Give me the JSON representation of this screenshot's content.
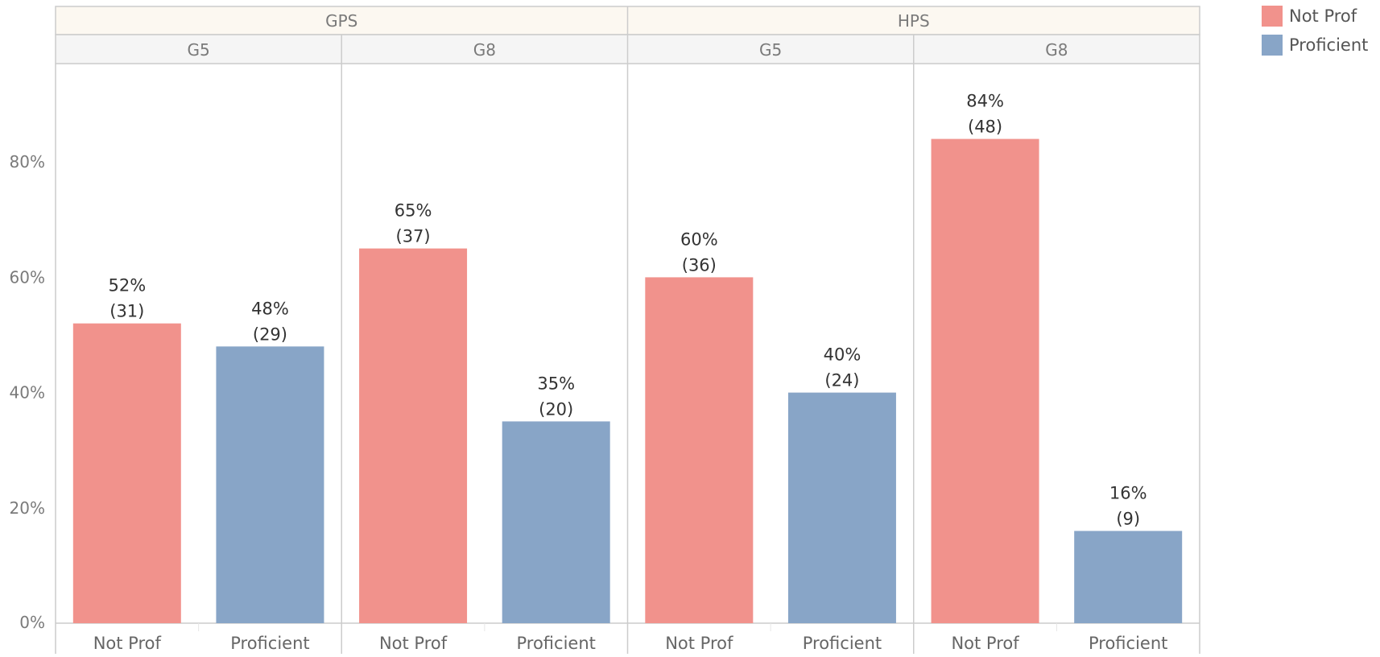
{
  "chart_data": {
    "type": "bar",
    "groups": [
      "GPS",
      "HPS"
    ],
    "subgroups": [
      "G5",
      "G8"
    ],
    "categories": [
      "Not Prof",
      "Proficient"
    ],
    "ylim": [
      0,
      0.98
    ],
    "yticks": [
      0,
      0.2,
      0.4,
      0.6,
      0.8
    ],
    "ytick_labels": [
      "0%",
      "20%",
      "40%",
      "60%",
      "80%"
    ],
    "grid": false,
    "legend_position": "top-right",
    "panels": [
      {
        "group": "GPS",
        "subgroup": "G5",
        "bars": [
          {
            "category": "Not Prof",
            "value": 0.52,
            "pct_label": "52%",
            "count_label": "(31)"
          },
          {
            "category": "Proficient",
            "value": 0.48,
            "pct_label": "48%",
            "count_label": "(29)"
          }
        ]
      },
      {
        "group": "GPS",
        "subgroup": "G8",
        "bars": [
          {
            "category": "Not Prof",
            "value": 0.65,
            "pct_label": "65%",
            "count_label": "(37)"
          },
          {
            "category": "Proficient",
            "value": 0.35,
            "pct_label": "35%",
            "count_label": "(20)"
          }
        ]
      },
      {
        "group": "HPS",
        "subgroup": "G5",
        "bars": [
          {
            "category": "Not Prof",
            "value": 0.6,
            "pct_label": "60%",
            "count_label": "(36)"
          },
          {
            "category": "Proficient",
            "value": 0.4,
            "pct_label": "40%",
            "count_label": "(24)"
          }
        ]
      },
      {
        "group": "HPS",
        "subgroup": "G8",
        "bars": [
          {
            "category": "Not Prof",
            "value": 0.84,
            "pct_label": "84%",
            "count_label": "(48)"
          },
          {
            "category": "Proficient",
            "value": 0.16,
            "pct_label": "16%",
            "count_label": "(9)"
          }
        ]
      }
    ]
  },
  "legend": {
    "items": [
      {
        "label": "Not Prof",
        "color": "#F1928C"
      },
      {
        "label": "Proficient",
        "color": "#88A5C7"
      }
    ]
  },
  "colors": {
    "Not Prof": "#F1928C",
    "Proficient": "#88A5C7",
    "group_header_bg": "#FCF8F1",
    "subgroup_header_bg": "#F5F5F5",
    "frame": "#CCCCCC",
    "axis_text": "#7A7A7A",
    "label_text": "#333333"
  }
}
